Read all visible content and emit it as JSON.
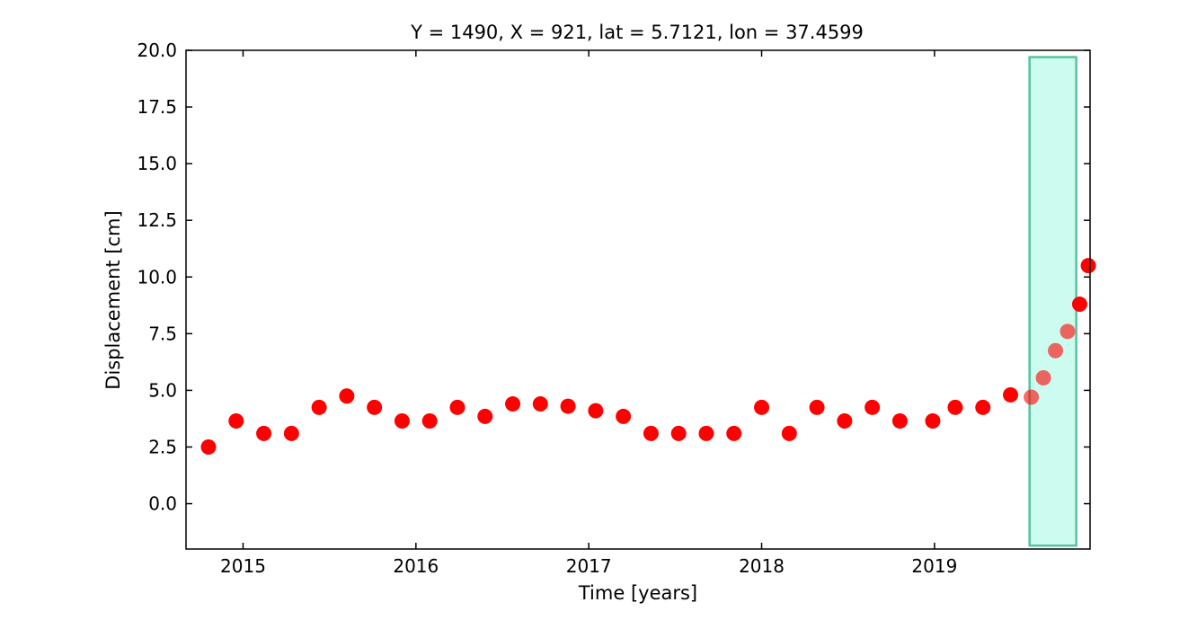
{
  "chart_data": {
    "type": "scatter",
    "title": "Y = 1490, X = 921, lat = 5.7121, lon = 37.4599",
    "xlabel": "Time [years]",
    "ylabel": "Displacement [cm]",
    "xlim": [
      2014.67,
      2019.9
    ],
    "ylim": [
      -2.0,
      20.0
    ],
    "x_ticks": [
      2015,
      2016,
      2017,
      2018,
      2019
    ],
    "x_tick_labels": [
      "2015",
      "2016",
      "2017",
      "2018",
      "2019"
    ],
    "y_ticks": [
      0.0,
      2.5,
      5.0,
      7.5,
      10.0,
      12.5,
      15.0,
      17.5,
      20.0
    ],
    "y_tick_labels": [
      "0.0",
      "2.5",
      "5.0",
      "7.5",
      "10.0",
      "12.5",
      "15.0",
      "17.5",
      "20.0"
    ],
    "grid": false,
    "highlight_range": {
      "x": [
        2019.55,
        2019.82
      ],
      "y": [
        -1.85,
        19.7
      ],
      "fill": "#ccfcef",
      "stroke": "#54c49c"
    },
    "series": [
      {
        "color": "#ff0000",
        "points": [
          [
            2014.8,
            2.5
          ],
          [
            2014.96,
            3.65
          ],
          [
            2015.12,
            3.1
          ],
          [
            2015.28,
            3.1
          ],
          [
            2015.44,
            4.25
          ],
          [
            2015.6,
            4.75
          ],
          [
            2015.76,
            4.25
          ],
          [
            2015.92,
            3.65
          ],
          [
            2016.08,
            3.65
          ],
          [
            2016.24,
            4.25
          ],
          [
            2016.4,
            3.85
          ],
          [
            2016.56,
            4.4
          ],
          [
            2016.72,
            4.4
          ],
          [
            2016.88,
            4.3
          ],
          [
            2017.04,
            4.1
          ],
          [
            2017.2,
            3.85
          ],
          [
            2017.36,
            3.1
          ],
          [
            2017.52,
            3.1
          ],
          [
            2017.68,
            3.1
          ],
          [
            2017.84,
            3.1
          ],
          [
            2018.0,
            4.25
          ],
          [
            2018.16,
            3.1
          ],
          [
            2018.32,
            4.25
          ],
          [
            2018.48,
            3.65
          ],
          [
            2018.64,
            4.25
          ],
          [
            2018.8,
            3.65
          ],
          [
            2018.99,
            3.65
          ],
          [
            2019.12,
            4.25
          ],
          [
            2019.28,
            4.25
          ],
          [
            2019.44,
            4.8
          ],
          [
            2019.56,
            4.7
          ],
          [
            2019.63,
            5.55
          ],
          [
            2019.7,
            6.75
          ],
          [
            2019.77,
            7.6
          ],
          [
            2019.84,
            8.8
          ],
          [
            2019.89,
            10.5
          ]
        ]
      }
    ]
  }
}
